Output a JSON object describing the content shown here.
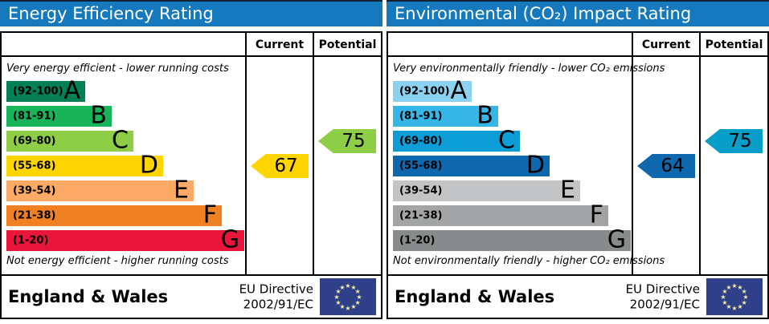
{
  "colors": {
    "header_bg": "#1679bd",
    "header_text": "#ffffff",
    "border": "#000000",
    "flag_bg": "#2f3f8a",
    "flag_star": "#f2eda0"
  },
  "panels": [
    {
      "title": "Energy Efficiency Rating",
      "columns": {
        "current": "Current",
        "potential": "Potential"
      },
      "top_caption": "Very energy efficient - lower running costs",
      "bottom_caption": "Not energy efficient - higher running costs",
      "bands": [
        {
          "letter": "A",
          "range": "(92-100)",
          "color": "#008054",
          "width_css": "98px"
        },
        {
          "letter": "B",
          "range": "(81-91)",
          "color": "#19b459",
          "width_css": "131px"
        },
        {
          "letter": "C",
          "range": "(69-80)",
          "color": "#8dce46",
          "width_css": "158px"
        },
        {
          "letter": "D",
          "range": "(55-68)",
          "color": "#ffd500",
          "width_css": "195px"
        },
        {
          "letter": "E",
          "range": "(39-54)",
          "color": "#fcaa65",
          "width_css": "233px"
        },
        {
          "letter": "F",
          "range": "(21-38)",
          "color": "#ef8023",
          "width_css": "268px"
        },
        {
          "letter": "G",
          "range": "(1-20)",
          "color": "#e9153b",
          "width_css": "296px"
        }
      ],
      "current": {
        "value": "67",
        "color": "#ffd500",
        "band_index": 3
      },
      "potential": {
        "value": "75",
        "color": "#8dce46",
        "band_index": 2
      },
      "footer": {
        "region": "England & Wales",
        "directive_line1": "EU Directive",
        "directive_line2": "2002/91/EC"
      }
    },
    {
      "title": "Environmental (CO₂) Impact Rating",
      "columns": {
        "current": "Current",
        "potential": "Potential"
      },
      "top_caption": "Very environmentally friendly - lower CO₂ emissions",
      "bottom_caption": "Not environmentally friendly - higher CO₂ emissions",
      "bands": [
        {
          "letter": "A",
          "range": "(92-100)",
          "color": "#8ad2ef",
          "width_css": "98px"
        },
        {
          "letter": "B",
          "range": "(81-91)",
          "color": "#35b6e6",
          "width_css": "131px"
        },
        {
          "letter": "C",
          "range": "(69-80)",
          "color": "#0c9cd6",
          "width_css": "158px"
        },
        {
          "letter": "D",
          "range": "(55-68)",
          "color": "#0f68ae",
          "width_css": "195px"
        },
        {
          "letter": "E",
          "range": "(39-54)",
          "color": "#c2c4c5",
          "width_css": "233px"
        },
        {
          "letter": "F",
          "range": "(21-38)",
          "color": "#a2a4a5",
          "width_css": "268px"
        },
        {
          "letter": "G",
          "range": "(1-20)",
          "color": "#888b8c",
          "width_css": "296px"
        }
      ],
      "current": {
        "value": "64",
        "color": "#0f68ae",
        "band_index": 3
      },
      "potential": {
        "value": "75",
        "color": "#069ec9",
        "band_index": 2
      },
      "footer": {
        "region": "England & Wales",
        "directive_line1": "EU Directive",
        "directive_line2": "2002/91/EC"
      }
    }
  ],
  "chart_data": [
    {
      "type": "bar",
      "orientation": "horizontal",
      "title": "Energy Efficiency Rating",
      "categories": [
        "A",
        "B",
        "C",
        "D",
        "E",
        "F",
        "G"
      ],
      "band_ranges": [
        "92-100",
        "81-91",
        "69-80",
        "55-68",
        "39-54",
        "21-38",
        "1-20"
      ],
      "band_colors": [
        "#008054",
        "#19b459",
        "#8dce46",
        "#ffd500",
        "#fcaa65",
        "#ef8023",
        "#e9153b"
      ],
      "scale": [
        1,
        100
      ],
      "series": [
        {
          "name": "Current",
          "values": [
            67
          ],
          "band": "D",
          "color": "#ffd500"
        },
        {
          "name": "Potential",
          "values": [
            75
          ],
          "band": "C",
          "color": "#8dce46"
        }
      ],
      "annotations": [
        "Very energy efficient - lower running costs",
        "Not energy efficient - higher running costs"
      ],
      "footer": [
        "England & Wales",
        "EU Directive 2002/91/EC"
      ],
      "legend_position": "none",
      "grid": false
    },
    {
      "type": "bar",
      "orientation": "horizontal",
      "title": "Environmental (CO₂) Impact Rating",
      "categories": [
        "A",
        "B",
        "C",
        "D",
        "E",
        "F",
        "G"
      ],
      "band_ranges": [
        "92-100",
        "81-91",
        "69-80",
        "55-68",
        "39-54",
        "21-38",
        "1-20"
      ],
      "band_colors": [
        "#8ad2ef",
        "#35b6e6",
        "#0c9cd6",
        "#0f68ae",
        "#c2c4c5",
        "#a2a4a5",
        "#888b8c"
      ],
      "scale": [
        1,
        100
      ],
      "series": [
        {
          "name": "Current",
          "values": [
            64
          ],
          "band": "D",
          "color": "#0f68ae"
        },
        {
          "name": "Potential",
          "values": [
            75
          ],
          "band": "C",
          "color": "#069ec9"
        }
      ],
      "annotations": [
        "Very environmentally friendly - lower CO₂ emissions",
        "Not environmentally friendly - higher CO₂ emissions"
      ],
      "footer": [
        "England & Wales",
        "EU Directive 2002/91/EC"
      ],
      "legend_position": "none",
      "grid": false
    }
  ]
}
